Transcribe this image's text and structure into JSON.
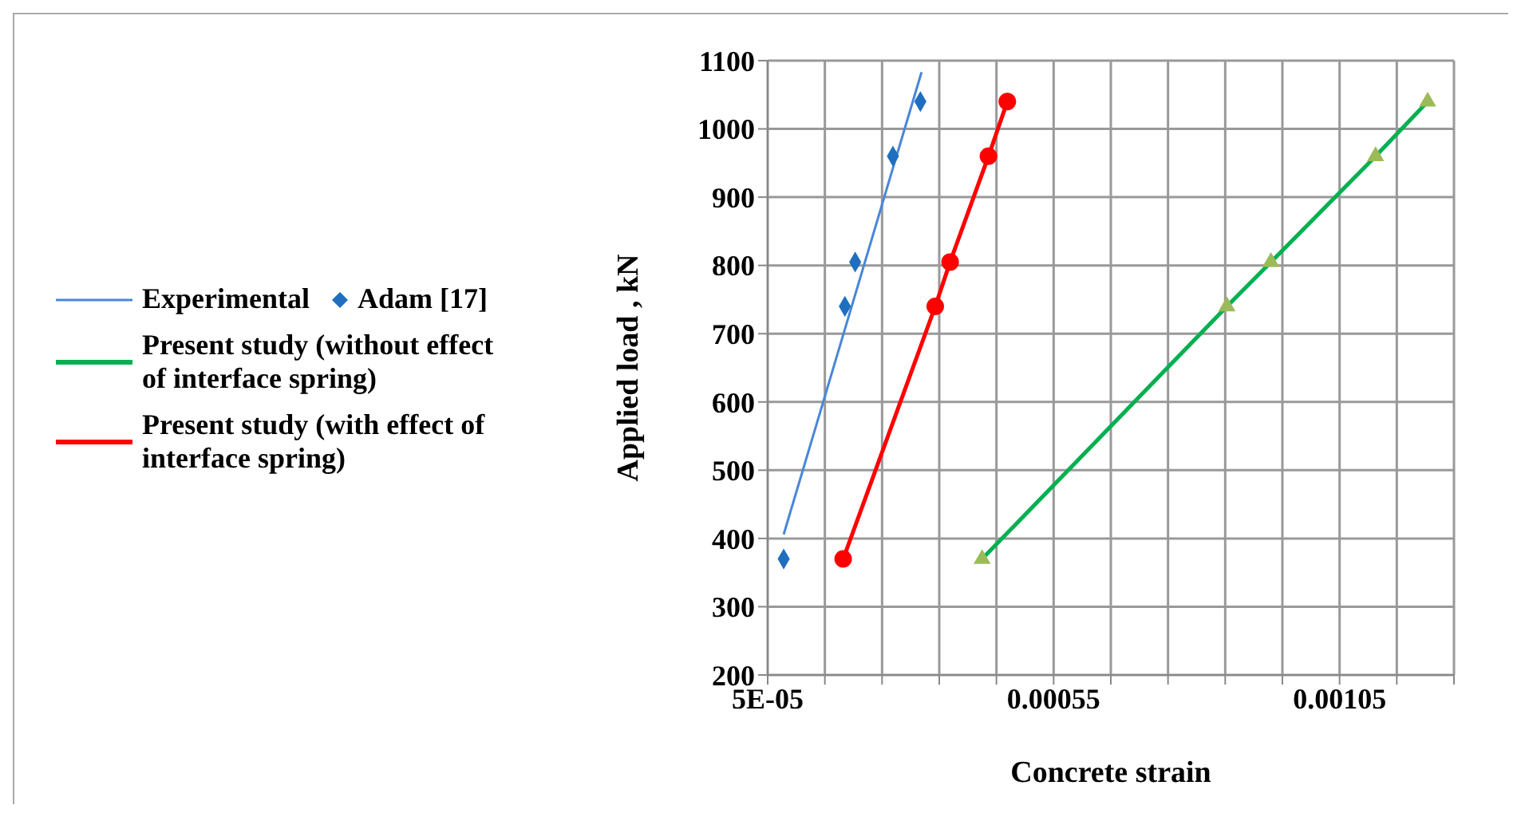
{
  "chart_data": {
    "type": "line",
    "xlabel": "Concrete strain",
    "ylabel": "Applied load , kN",
    "xlim": [
      5e-05,
      0.00125
    ],
    "xticks": [
      {
        "value": 5e-05,
        "label": "5E-05"
      },
      {
        "value": 0.00015,
        "label": null
      },
      {
        "value": 0.00025,
        "label": null
      },
      {
        "value": 0.00035,
        "label": null
      },
      {
        "value": 0.00045,
        "label": null
      },
      0.00055,
      {
        "value": 0.00065,
        "label": null
      },
      {
        "value": 0.00075,
        "label": null
      },
      {
        "value": 0.00085,
        "label": null
      },
      {
        "value": 0.00095,
        "label": null
      },
      0.00105,
      {
        "value": 0.00115,
        "label": null
      },
      {
        "value": 0.00125,
        "label": null
      }
    ],
    "ylim": [
      200,
      1100
    ],
    "yticks": [
      200,
      300,
      400,
      500,
      600,
      700,
      800,
      900,
      1000,
      1100
    ],
    "grid": true,
    "legend": "left",
    "series": [
      {
        "name": "Experimental",
        "type": "line",
        "color": "#4a86d8",
        "marker": "none",
        "x": [
          7.8e-05,
          0.000319
        ],
        "values": [
          406,
          1083
        ]
      },
      {
        "name": "Adam [17]",
        "type": "scatter",
        "color": "#1f6fc0",
        "marker": "diamond",
        "x": [
          7.8e-05,
          0.000185,
          0.000203,
          0.000269,
          0.000317
        ],
        "values": [
          370,
          740,
          805,
          960,
          1040
        ]
      },
      {
        "name": "Present study (without effect of interface spring)",
        "type": "line",
        "color": "#00b050",
        "marker": "none",
        "x": [
          0.000425,
          0.000853,
          0.00093,
          0.001113,
          0.001204
        ],
        "values": [
          370,
          740,
          805,
          960,
          1040
        ]
      },
      {
        "type": "scatter",
        "color": "#9bbb59",
        "marker": "triangle",
        "x": [
          0.000425,
          0.000853,
          0.00093,
          0.001113,
          0.001204
        ],
        "values": [
          370,
          740,
          805,
          960,
          1040
        ]
      },
      {
        "name": "Present study (with effect of interface spring)",
        "type": "line",
        "color": "#ff0000",
        "marker": "circle",
        "x": [
          0.000182,
          0.000343,
          0.000369,
          0.000436,
          0.000469
        ],
        "values": [
          370,
          740,
          805,
          960,
          1040
        ]
      }
    ]
  }
}
